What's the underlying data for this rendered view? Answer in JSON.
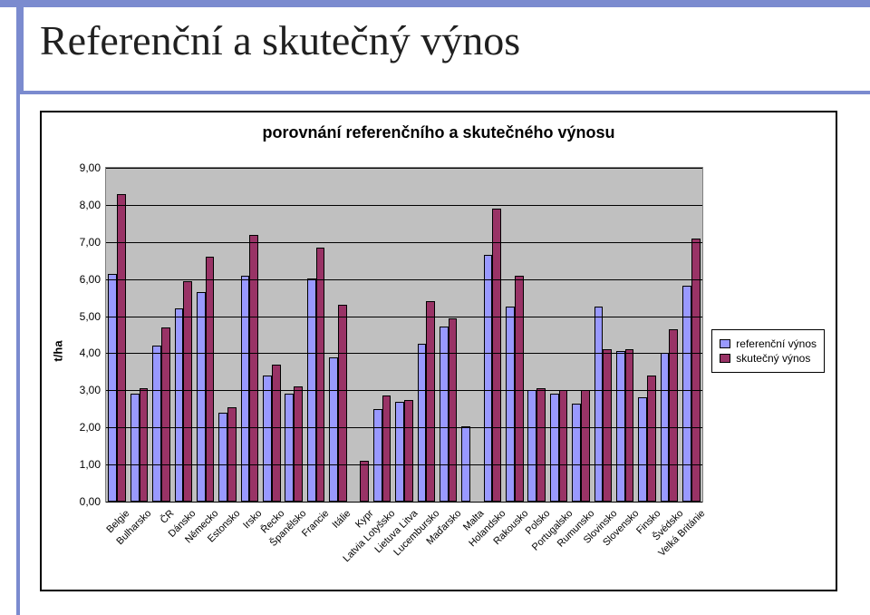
{
  "slide": {
    "title": "Referenční a skutečný výnos",
    "title_fontsize": 46,
    "accent_color": "#7b8bcf",
    "background_color": "#ffffff"
  },
  "chart": {
    "type": "bar",
    "title": "porovnání referenčního a skutečného výnosu",
    "title_fontsize": 18,
    "y_axis_title": "t/ha",
    "y_axis_title_fontsize": 13,
    "ylim": [
      0,
      9
    ],
    "ytick_step": 1,
    "yticks": [
      "0,00",
      "1,00",
      "2,00",
      "3,00",
      "4,00",
      "5,00",
      "6,00",
      "7,00",
      "8,00",
      "9,00"
    ],
    "ylabel_fontsize": 12,
    "xlabel_fontsize": 11,
    "xlabel_rotation_deg": -45,
    "plot_background_color": "#c0c0c0",
    "grid_color": "#000000",
    "group_spacing_ratio": 0.2,
    "bar_border_color": "#000000",
    "series": [
      {
        "key": "ref",
        "label": "referenční výnos",
        "color": "#9999ff"
      },
      {
        "key": "act",
        "label": "skutečný výnos",
        "color": "#993366"
      }
    ],
    "categories": [
      "Belgie",
      "Bulharsko",
      "ČR",
      "Dánsko",
      "Německo",
      "Estonsko",
      "Irsko",
      "Řecko",
      "Španělsko",
      "Francie",
      "Itálie",
      "Kypr",
      "Latvia Lotyšsko",
      "Lietuva Litva",
      "Lucembursko",
      "Maďarsko",
      "Malta",
      "Holandsko",
      "Rakousko",
      "Polsko",
      "Portugalsko",
      "Rumunsko",
      "Slovinsko",
      "Slovensko",
      "Finsko",
      "Švédsko",
      "Velká Británie"
    ],
    "values": {
      "ref": [
        6.15,
        2.9,
        4.2,
        5.22,
        5.66,
        2.4,
        6.08,
        3.39,
        2.9,
        6.02,
        3.9,
        0.0,
        2.5,
        2.7,
        4.26,
        4.73,
        2.02,
        6.66,
        5.27,
        3.0,
        2.9,
        2.65,
        5.27,
        4.06,
        2.82,
        4.02,
        5.83
      ],
      "act": [
        8.3,
        3.05,
        4.7,
        5.95,
        6.6,
        2.55,
        7.2,
        3.7,
        3.1,
        6.85,
        5.3,
        1.1,
        2.85,
        2.75,
        5.4,
        4.95,
        0.0,
        7.9,
        6.1,
        3.05,
        3.0,
        3.0,
        4.1,
        4.1,
        3.4,
        4.65,
        7.1
      ]
    },
    "legend": {
      "position": "right-middle",
      "border_color": "#000000",
      "background_color": "#ffffff",
      "fontsize": 12
    }
  }
}
